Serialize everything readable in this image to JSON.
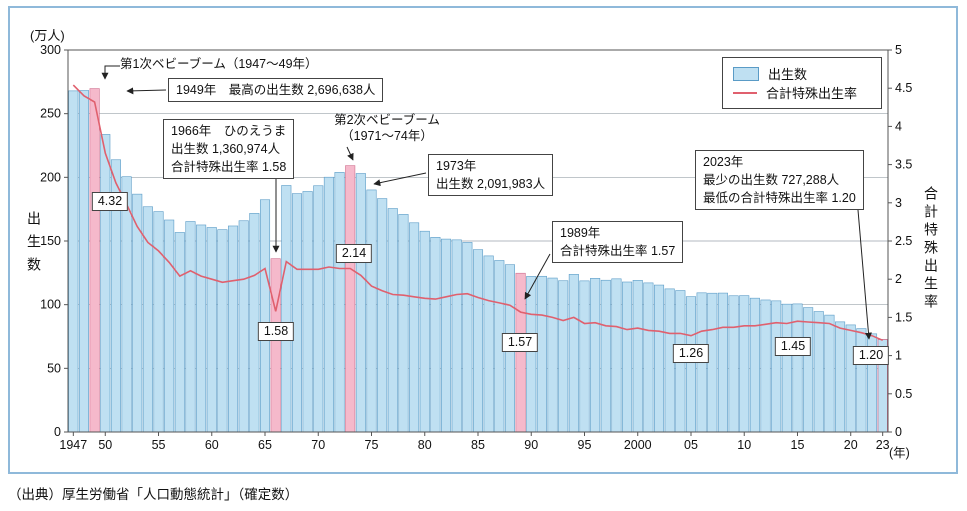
{
  "axes": {
    "left_unit": "(万人)",
    "left_title": "出生数",
    "right_title": "合計特殊出生率",
    "x_unit": "(年)"
  },
  "legend": {
    "births_label": "出生数",
    "tfr_label": "合計特殊出生率"
  },
  "annotations": {
    "boom1": "第1次ベビーブーム（1947～49年）",
    "peak_1949": "1949年　最高の出生数 2,696,638人",
    "hinoeuma_line1": "1966年　ひのえうま",
    "hinoeuma_line2": "出生数 1,360,974人",
    "hinoeuma_line3": "合計特殊出生率 1.58",
    "boom2_line1": "第2次ベビーブーム",
    "boom2_line2": "（1971～74年）",
    "y1973_line1": "1973年",
    "y1973_line2": "出生数 2,091,983人",
    "y1989_line1": "1989年",
    "y1989_line2": "合計特殊出生率 1.57",
    "y2023_line1": "2023年",
    "y2023_line2": "最少の出生数 727,288人",
    "y2023_line3": "最低の合計特殊出生率 1.20"
  },
  "point_labels": {
    "tfr_1949": "4.32",
    "tfr_1966": "1.58",
    "tfr_1973": "2.14",
    "tfr_1989": "1.57",
    "tfr_2005": "1.26",
    "tfr_2015": "1.45",
    "tfr_2023": "1.20"
  },
  "source": "（出典）厚生労働省「人口動態統計」（確定数）",
  "colors": {
    "bar_fill": "#bfe0f2",
    "bar_stroke": "#5a9bc6",
    "highlight_fill": "#f5b9cb",
    "highlight_stroke": "#cf6f8e",
    "tfr_line": "#e0606e",
    "frame_border": "#8fb9da"
  },
  "chart_data": {
    "type": "bar",
    "title": "",
    "legend_position": "top-right",
    "grid": true,
    "years": [
      1947,
      1948,
      1949,
      1950,
      1951,
      1952,
      1953,
      1954,
      1955,
      1956,
      1957,
      1958,
      1959,
      1960,
      1961,
      1962,
      1963,
      1964,
      1965,
      1966,
      1967,
      1968,
      1969,
      1970,
      1971,
      1972,
      1973,
      1974,
      1975,
      1976,
      1977,
      1978,
      1979,
      1980,
      1981,
      1982,
      1983,
      1984,
      1985,
      1986,
      1987,
      1988,
      1989,
      1990,
      1991,
      1992,
      1993,
      1994,
      1995,
      1996,
      1997,
      1998,
      1999,
      2000,
      2001,
      2002,
      2003,
      2004,
      2005,
      2006,
      2007,
      2008,
      2009,
      2010,
      2011,
      2012,
      2013,
      2014,
      2015,
      2016,
      2017,
      2018,
      2019,
      2020,
      2021,
      2022,
      2023
    ],
    "series": [
      {
        "name": "出生数",
        "type": "bar",
        "axis": "left",
        "unit": "万人",
        "values": [
          267.9,
          268.2,
          269.7,
          233.7,
          213.8,
          200.5,
          186.8,
          176.9,
          173.1,
          166.5,
          156.7,
          165.3,
          162.6,
          160.6,
          158.9,
          161.8,
          165.9,
          171.7,
          182.4,
          136.1,
          193.6,
          187.2,
          188.9,
          193.4,
          200.1,
          203.9,
          209.2,
          203.0,
          190.1,
          183.3,
          175.5,
          170.9,
          164.3,
          157.7,
          152.9,
          151.5,
          150.9,
          148.9,
          143.2,
          138.3,
          134.7,
          131.4,
          124.7,
          122.2,
          122.3,
          120.9,
          118.8,
          123.8,
          118.7,
          120.7,
          119.2,
          120.3,
          117.8,
          119.1,
          117.1,
          115.4,
          112.4,
          111.1,
          106.3,
          109.3,
          109.0,
          109.1,
          107.0,
          107.1,
          105.1,
          103.7,
          103.0,
          100.4,
          100.6,
          97.7,
          94.6,
          91.8,
          86.5,
          84.1,
          81.2,
          77.1,
          72.7
        ]
      },
      {
        "name": "合計特殊出生率",
        "type": "line",
        "axis": "right",
        "values": [
          4.54,
          4.4,
          4.32,
          3.65,
          3.26,
          2.98,
          2.69,
          2.48,
          2.37,
          2.22,
          2.04,
          2.11,
          2.04,
          2.0,
          1.96,
          1.98,
          2.0,
          2.05,
          2.14,
          1.58,
          2.23,
          2.13,
          2.13,
          2.13,
          2.16,
          2.14,
          2.14,
          2.05,
          1.91,
          1.85,
          1.8,
          1.79,
          1.77,
          1.75,
          1.74,
          1.77,
          1.8,
          1.81,
          1.76,
          1.72,
          1.69,
          1.66,
          1.57,
          1.54,
          1.53,
          1.5,
          1.46,
          1.5,
          1.42,
          1.43,
          1.39,
          1.38,
          1.34,
          1.36,
          1.33,
          1.32,
          1.29,
          1.29,
          1.26,
          1.32,
          1.34,
          1.37,
          1.37,
          1.39,
          1.39,
          1.41,
          1.43,
          1.42,
          1.45,
          1.44,
          1.43,
          1.42,
          1.36,
          1.33,
          1.3,
          1.26,
          1.2
        ]
      }
    ],
    "left_axis": {
      "label": "出生数",
      "unit": "万人",
      "min": 0,
      "max": 300,
      "ticks": [
        0,
        50,
        100,
        150,
        200,
        250,
        300
      ]
    },
    "right_axis": {
      "label": "合計特殊出生率",
      "min": 0,
      "max": 5,
      "ticks": [
        0,
        0.5,
        1,
        1.5,
        2,
        2.5,
        3,
        3.5,
        4,
        4.5,
        5
      ]
    },
    "x_ticks": [
      {
        "year": 1947,
        "label": "1947"
      },
      {
        "year": 1950,
        "label": "50"
      },
      {
        "year": 1955,
        "label": "55"
      },
      {
        "year": 1960,
        "label": "60"
      },
      {
        "year": 1965,
        "label": "65"
      },
      {
        "year": 1970,
        "label": "70"
      },
      {
        "year": 1975,
        "label": "75"
      },
      {
        "year": 1980,
        "label": "80"
      },
      {
        "year": 1985,
        "label": "85"
      },
      {
        "year": 1990,
        "label": "90"
      },
      {
        "year": 1995,
        "label": "95"
      },
      {
        "year": 2000,
        "label": "2000"
      },
      {
        "year": 2005,
        "label": "05"
      },
      {
        "year": 2010,
        "label": "10"
      },
      {
        "year": 2015,
        "label": "15"
      },
      {
        "year": 2020,
        "label": "20"
      },
      {
        "year": 2023,
        "label": "23"
      }
    ],
    "highlight_years": [
      1949,
      1966,
      1973,
      1989
    ],
    "hatched_years": [
      2023
    ]
  }
}
